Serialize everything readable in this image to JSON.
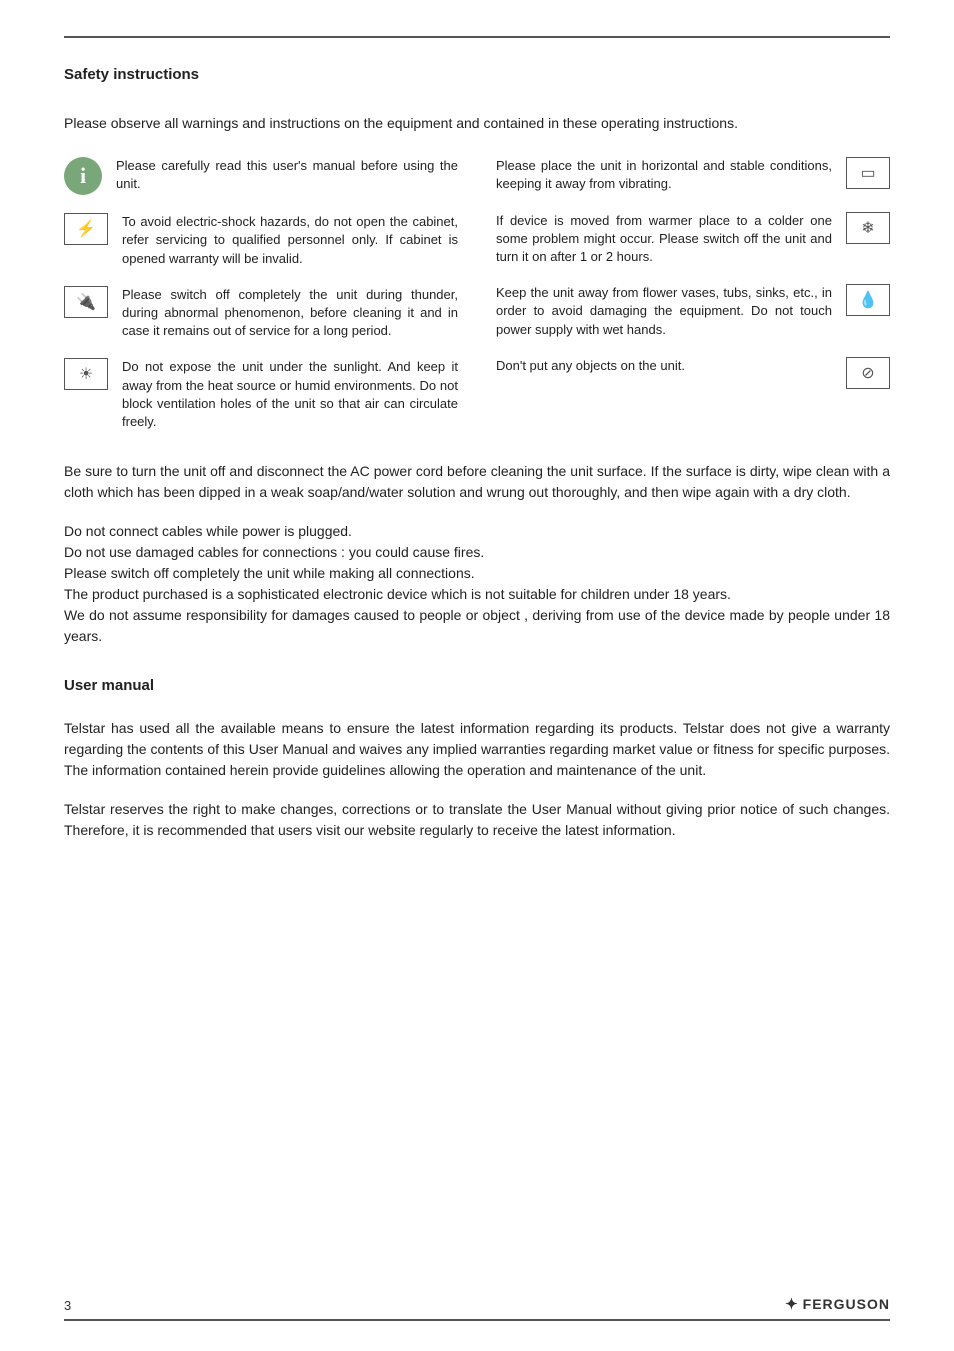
{
  "page_number": "3",
  "brand": "FERGUSON",
  "sections": {
    "safety_title": "Safety instructions",
    "intro": "Please observe all warnings and instructions on the equipment and contained in these operating instructions.",
    "left_items": [
      {
        "icon_type": "circle",
        "icon_glyph": "i",
        "icon_name": "info-icon",
        "text": "Please carefully read this user's manual before using the unit."
      },
      {
        "icon_type": "box",
        "icon_glyph": "⚡",
        "icon_name": "shock-hazard-icon",
        "text": "To avoid electric-shock hazards, do not open the cabinet, refer servicing to qualified personnel only. If cabinet is opened warranty will be invalid."
      },
      {
        "icon_type": "box",
        "icon_glyph": "🔌",
        "icon_name": "power-off-icon",
        "text": "Please switch off completely the unit during thunder, during abnormal phenomenon, before cleaning it and in case it remains out of service for a long period."
      },
      {
        "icon_type": "box",
        "icon_glyph": "☀",
        "icon_name": "sunlight-icon",
        "text": "Do not expose the unit under the sunlight. And keep it away from the heat source or humid environments. Do not block ventilation holes of the unit so that air can circulate freely."
      }
    ],
    "right_items": [
      {
        "icon_type": "box",
        "icon_glyph": "▭",
        "icon_name": "horizontal-icon",
        "text": "Please place the unit in horizontal and stable conditions, keeping it away from vibrating."
      },
      {
        "icon_type": "box",
        "icon_glyph": "❄",
        "icon_name": "temperature-icon",
        "text": "If device is moved from warmer place to a colder one some problem might occur. Please switch off the unit and turn it on after 1 or 2 hours."
      },
      {
        "icon_type": "box",
        "icon_glyph": "💧",
        "icon_name": "water-hazard-icon",
        "text": "Keep the unit away from flower vases, tubs, sinks, etc., in order to avoid damaging the equipment. Do not touch power supply with wet hands."
      },
      {
        "icon_type": "box",
        "icon_glyph": "⊘",
        "icon_name": "no-objects-icon",
        "text": "Don't put any objects on the unit."
      }
    ],
    "body_block": "Be sure to turn the unit off and disconnect the AC power cord before cleaning the unit surface. If the surface is dirty, wipe clean with a cloth which has been dipped in a weak soap/and/water solution and wrung out thoroughly, and then wipe again with a dry cloth.",
    "body_lines": [
      "Do not connect cables while power is plugged.",
      "Do not use damaged cables for connections : you could cause fires.",
      "Please switch off completely the unit while making all connections.",
      "The product purchased is a sophisticated electronic device which is not suitable for children under 18 years.",
      "We do not assume responsibility for damages caused to people or object , deriving from use of the device made by people under 18 years."
    ],
    "user_manual_title": "User manual",
    "user_manual_p1": "Telstar has used all the available means to ensure the latest information regarding its products. Telstar does not give a warranty regarding the contents of this User Manual and waives any implied warranties regarding market value or fitness for specific purposes. The information contained herein provide guidelines allowing the operation and maintenance of the unit.",
    "user_manual_p2": "Telstar reserves the right to make changes, corrections or to translate the User Manual without giving prior notice of such changes. Therefore, it is recommended that users visit our website regularly to receive the latest information."
  }
}
